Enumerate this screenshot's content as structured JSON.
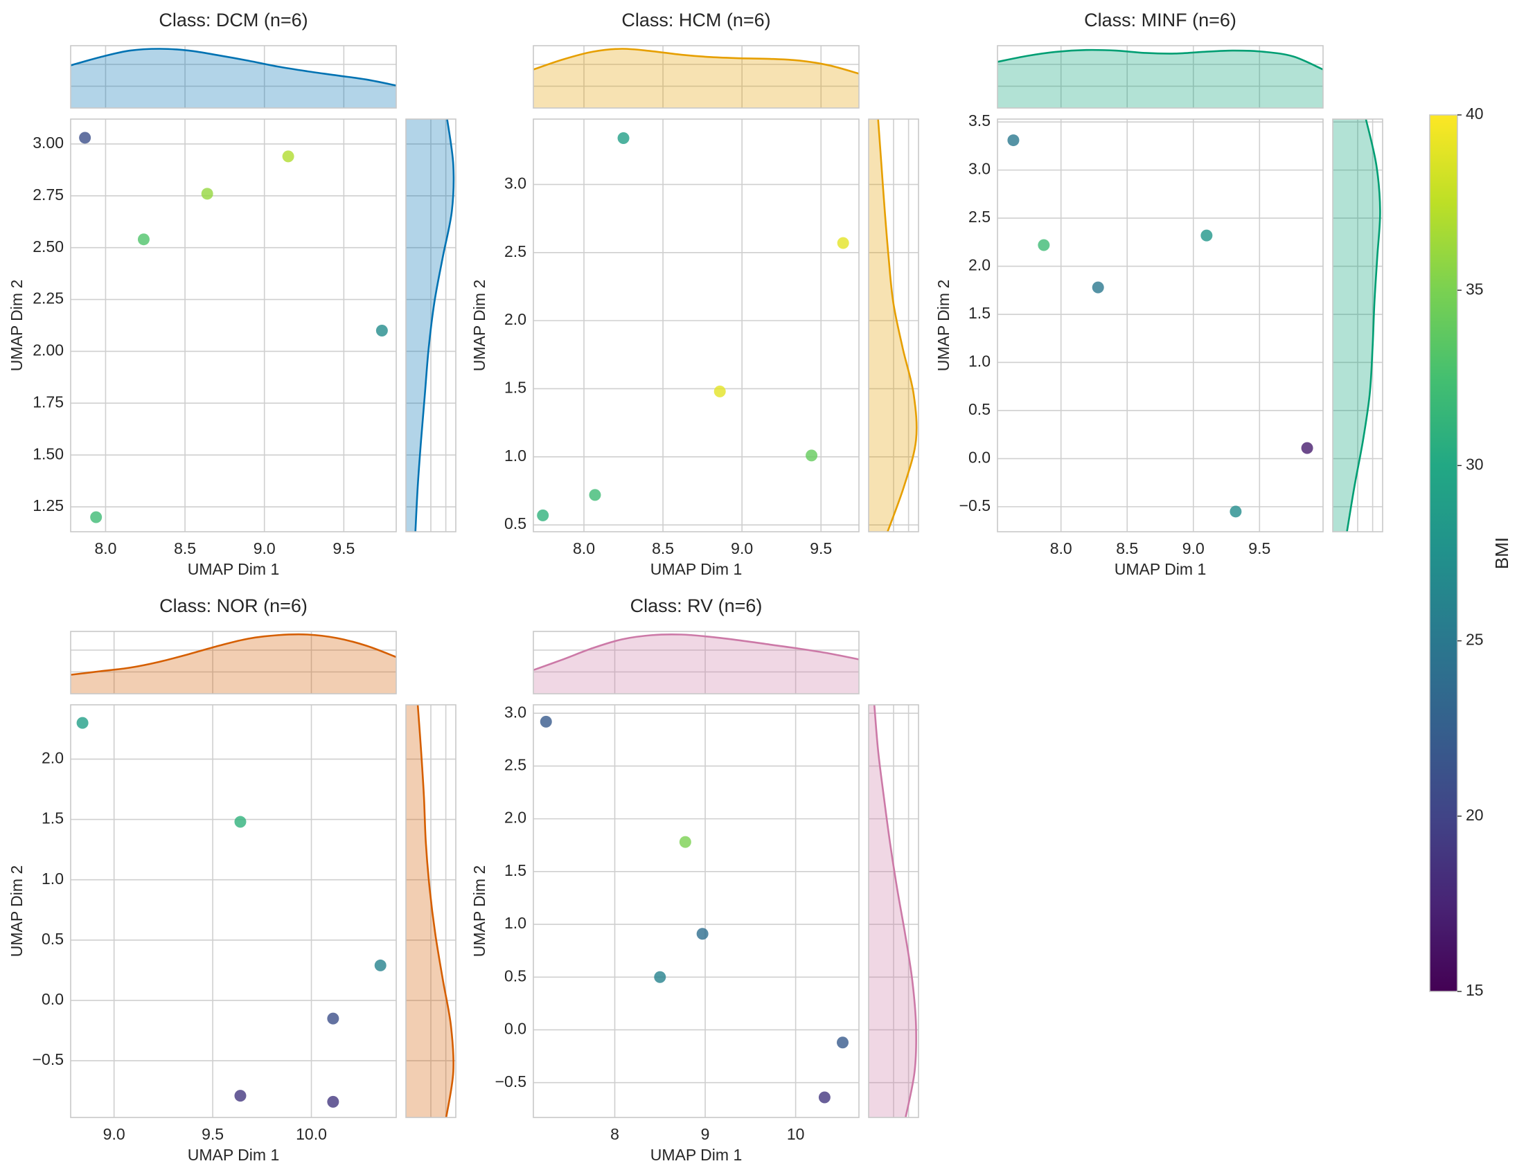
{
  "chart_data": {
    "type": "scatter",
    "colorbar": {
      "label": "BMI",
      "range": [
        15,
        40
      ],
      "ticks": [
        15,
        20,
        25,
        30,
        35,
        40
      ],
      "colormap": "viridis"
    },
    "panels": [
      {
        "title": "Class: DCM (n=6)",
        "color": "#0072b2",
        "xlabel": "UMAP Dim 1",
        "ylabel": "UMAP Dim 2",
        "xlim": [
          7.78,
          9.83
        ],
        "ylim": [
          1.13,
          3.12
        ],
        "xticks": [
          8.0,
          8.5,
          9.0,
          9.5
        ],
        "xtick_labels": [
          "8.0",
          "8.5",
          "9.0",
          "9.5"
        ],
        "yticks": [
          1.25,
          1.5,
          1.75,
          2.0,
          2.25,
          2.5,
          2.75,
          3.0
        ],
        "ytick_labels": [
          "1.25",
          "1.50",
          "1.75",
          "2.00",
          "2.25",
          "2.50",
          "2.75",
          "3.00"
        ],
        "top_kde": [
          0.72,
          0.86,
          0.97,
          1.0,
          0.97,
          0.89,
          0.8,
          0.7,
          0.62,
          0.55,
          0.48,
          0.38
        ],
        "right_kde": [
          0.2,
          0.25,
          0.32,
          0.4,
          0.48,
          0.6,
          0.78,
          0.97,
          1.0,
          0.87
        ],
        "points": [
          {
            "x": 7.87,
            "y": 3.03,
            "bmi": 21
          },
          {
            "x": 7.94,
            "y": 1.2,
            "bmi": 32
          },
          {
            "x": 8.24,
            "y": 2.54,
            "bmi": 33
          },
          {
            "x": 8.64,
            "y": 2.76,
            "bmi": 36
          },
          {
            "x": 9.15,
            "y": 2.94,
            "bmi": 37
          },
          {
            "x": 9.74,
            "y": 2.1,
            "bmi": 27
          }
        ]
      },
      {
        "title": "Class: HCM (n=6)",
        "color": "#e69f00",
        "xlabel": "UMAP Dim 1",
        "ylabel": "UMAP Dim 2",
        "xlim": [
          7.68,
          9.74
        ],
        "ylim": [
          0.45,
          3.48
        ],
        "xticks": [
          8.0,
          8.5,
          9.0,
          9.5
        ],
        "xtick_labels": [
          "8.0",
          "8.5",
          "9.0",
          "9.5"
        ],
        "yticks": [
          0.5,
          1.0,
          1.5,
          2.0,
          2.5,
          3.0
        ],
        "ytick_labels": [
          "0.5",
          "1.0",
          "1.5",
          "2.0",
          "2.5",
          "3.0"
        ],
        "top_kde": [
          0.65,
          0.82,
          0.95,
          1.0,
          0.96,
          0.9,
          0.86,
          0.84,
          0.83,
          0.8,
          0.72,
          0.58
        ],
        "right_kde": [
          0.4,
          0.75,
          1.0,
          0.95,
          0.72,
          0.52,
          0.42,
          0.34,
          0.27,
          0.2
        ],
        "points": [
          {
            "x": 7.74,
            "y": 0.57,
            "bmi": 31
          },
          {
            "x": 8.07,
            "y": 0.72,
            "bmi": 32
          },
          {
            "x": 8.25,
            "y": 3.34,
            "bmi": 29
          },
          {
            "x": 8.86,
            "y": 1.48,
            "bmi": 39
          },
          {
            "x": 9.44,
            "y": 1.01,
            "bmi": 34
          },
          {
            "x": 9.64,
            "y": 2.57,
            "bmi": 39
          }
        ]
      },
      {
        "title": "Class: MINF (n=6)",
        "color": "#009e73",
        "xlabel": "UMAP Dim 1",
        "ylabel": "UMAP Dim 2",
        "xlim": [
          7.52,
          9.98
        ],
        "ylim": [
          -0.76,
          3.53
        ],
        "xticks": [
          8.0,
          8.5,
          9.0,
          9.5
        ],
        "xtick_labels": [
          "8.0",
          "8.5",
          "9.0",
          "9.5"
        ],
        "yticks": [
          -0.5,
          0.0,
          0.5,
          1.0,
          1.5,
          2.0,
          2.5,
          3.0,
          3.5
        ],
        "ytick_labels": [
          "−0.5",
          "0.0",
          "0.5",
          "1.0",
          "1.5",
          "2.0",
          "2.5",
          "3.0",
          "3.5"
        ],
        "top_kde": [
          0.78,
          0.88,
          0.95,
          0.98,
          0.97,
          0.93,
          0.92,
          0.95,
          0.97,
          0.95,
          0.87,
          0.65
        ],
        "right_kde": [
          0.3,
          0.46,
          0.64,
          0.78,
          0.84,
          0.88,
          0.94,
          1.0,
          0.92,
          0.7
        ],
        "points": [
          {
            "x": 7.64,
            "y": 3.31,
            "bmi": 25
          },
          {
            "x": 7.87,
            "y": 2.22,
            "bmi": 32
          },
          {
            "x": 8.28,
            "y": 1.78,
            "bmi": 25
          },
          {
            "x": 9.1,
            "y": 2.32,
            "bmi": 28
          },
          {
            "x": 9.32,
            "y": -0.55,
            "bmi": 27
          },
          {
            "x": 9.86,
            "y": 0.11,
            "bmi": 17
          }
        ]
      },
      {
        "title": "Class: NOR (n=6)",
        "color": "#d55e00",
        "xlabel": "UMAP Dim 1",
        "ylabel": "UMAP Dim 2",
        "xlim": [
          8.78,
          10.43
        ],
        "ylim": [
          -0.97,
          2.45
        ],
        "xticks": [
          9.0,
          9.5,
          10.0
        ],
        "xtick_labels": [
          "9.0",
          "9.5",
          "10.0"
        ],
        "yticks": [
          -0.5,
          0.0,
          0.5,
          1.0,
          1.5,
          2.0
        ],
        "ytick_labels": [
          "−0.5",
          "0.0",
          "0.5",
          "1.0",
          "1.5",
          "2.0"
        ],
        "top_kde": [
          0.32,
          0.38,
          0.44,
          0.54,
          0.67,
          0.81,
          0.93,
          0.99,
          1.0,
          0.94,
          0.81,
          0.62
        ],
        "right_kde": [
          0.85,
          1.0,
          0.95,
          0.78,
          0.62,
          0.5,
          0.42,
          0.38,
          0.32,
          0.25
        ],
        "points": [
          {
            "x": 8.84,
            "y": 2.3,
            "bmi": 29
          },
          {
            "x": 9.64,
            "y": 1.48,
            "bmi": 31
          },
          {
            "x": 9.64,
            "y": -0.79,
            "bmi": 19
          },
          {
            "x": 10.11,
            "y": -0.84,
            "bmi": 19
          },
          {
            "x": 10.11,
            "y": -0.15,
            "bmi": 21
          },
          {
            "x": 10.35,
            "y": 0.29,
            "bmi": 26
          }
        ]
      },
      {
        "title": "Class: RV (n=6)",
        "color": "#cc79a7",
        "xlabel": "UMAP Dim 1",
        "ylabel": "UMAP Dim 2",
        "xlim": [
          7.1,
          10.7
        ],
        "ylim": [
          -0.83,
          3.08
        ],
        "xticks": [
          8,
          9,
          10
        ],
        "xtick_labels": [
          "8",
          "9",
          "10"
        ],
        "yticks": [
          -0.5,
          0.0,
          0.5,
          1.0,
          1.5,
          2.0,
          2.5,
          3.0
        ],
        "ytick_labels": [
          "−0.5",
          "0.0",
          "0.5",
          "1.0",
          "1.5",
          "2.0",
          "2.5",
          "3.0"
        ],
        "top_kde": [
          0.4,
          0.58,
          0.77,
          0.92,
          0.99,
          1.0,
          0.96,
          0.9,
          0.83,
          0.76,
          0.68,
          0.58
        ],
        "right_kde": [
          0.78,
          0.97,
          1.0,
          0.92,
          0.77,
          0.6,
          0.45,
          0.32,
          0.2,
          0.12
        ],
        "points": [
          {
            "x": 7.24,
            "y": 2.92,
            "bmi": 22
          },
          {
            "x": 8.5,
            "y": 0.5,
            "bmi": 26
          },
          {
            "x": 8.78,
            "y": 1.78,
            "bmi": 35
          },
          {
            "x": 8.97,
            "y": 0.91,
            "bmi": 24
          },
          {
            "x": 10.32,
            "y": -0.64,
            "bmi": 19
          },
          {
            "x": 10.52,
            "y": -0.12,
            "bmi": 22
          }
        ]
      }
    ]
  }
}
